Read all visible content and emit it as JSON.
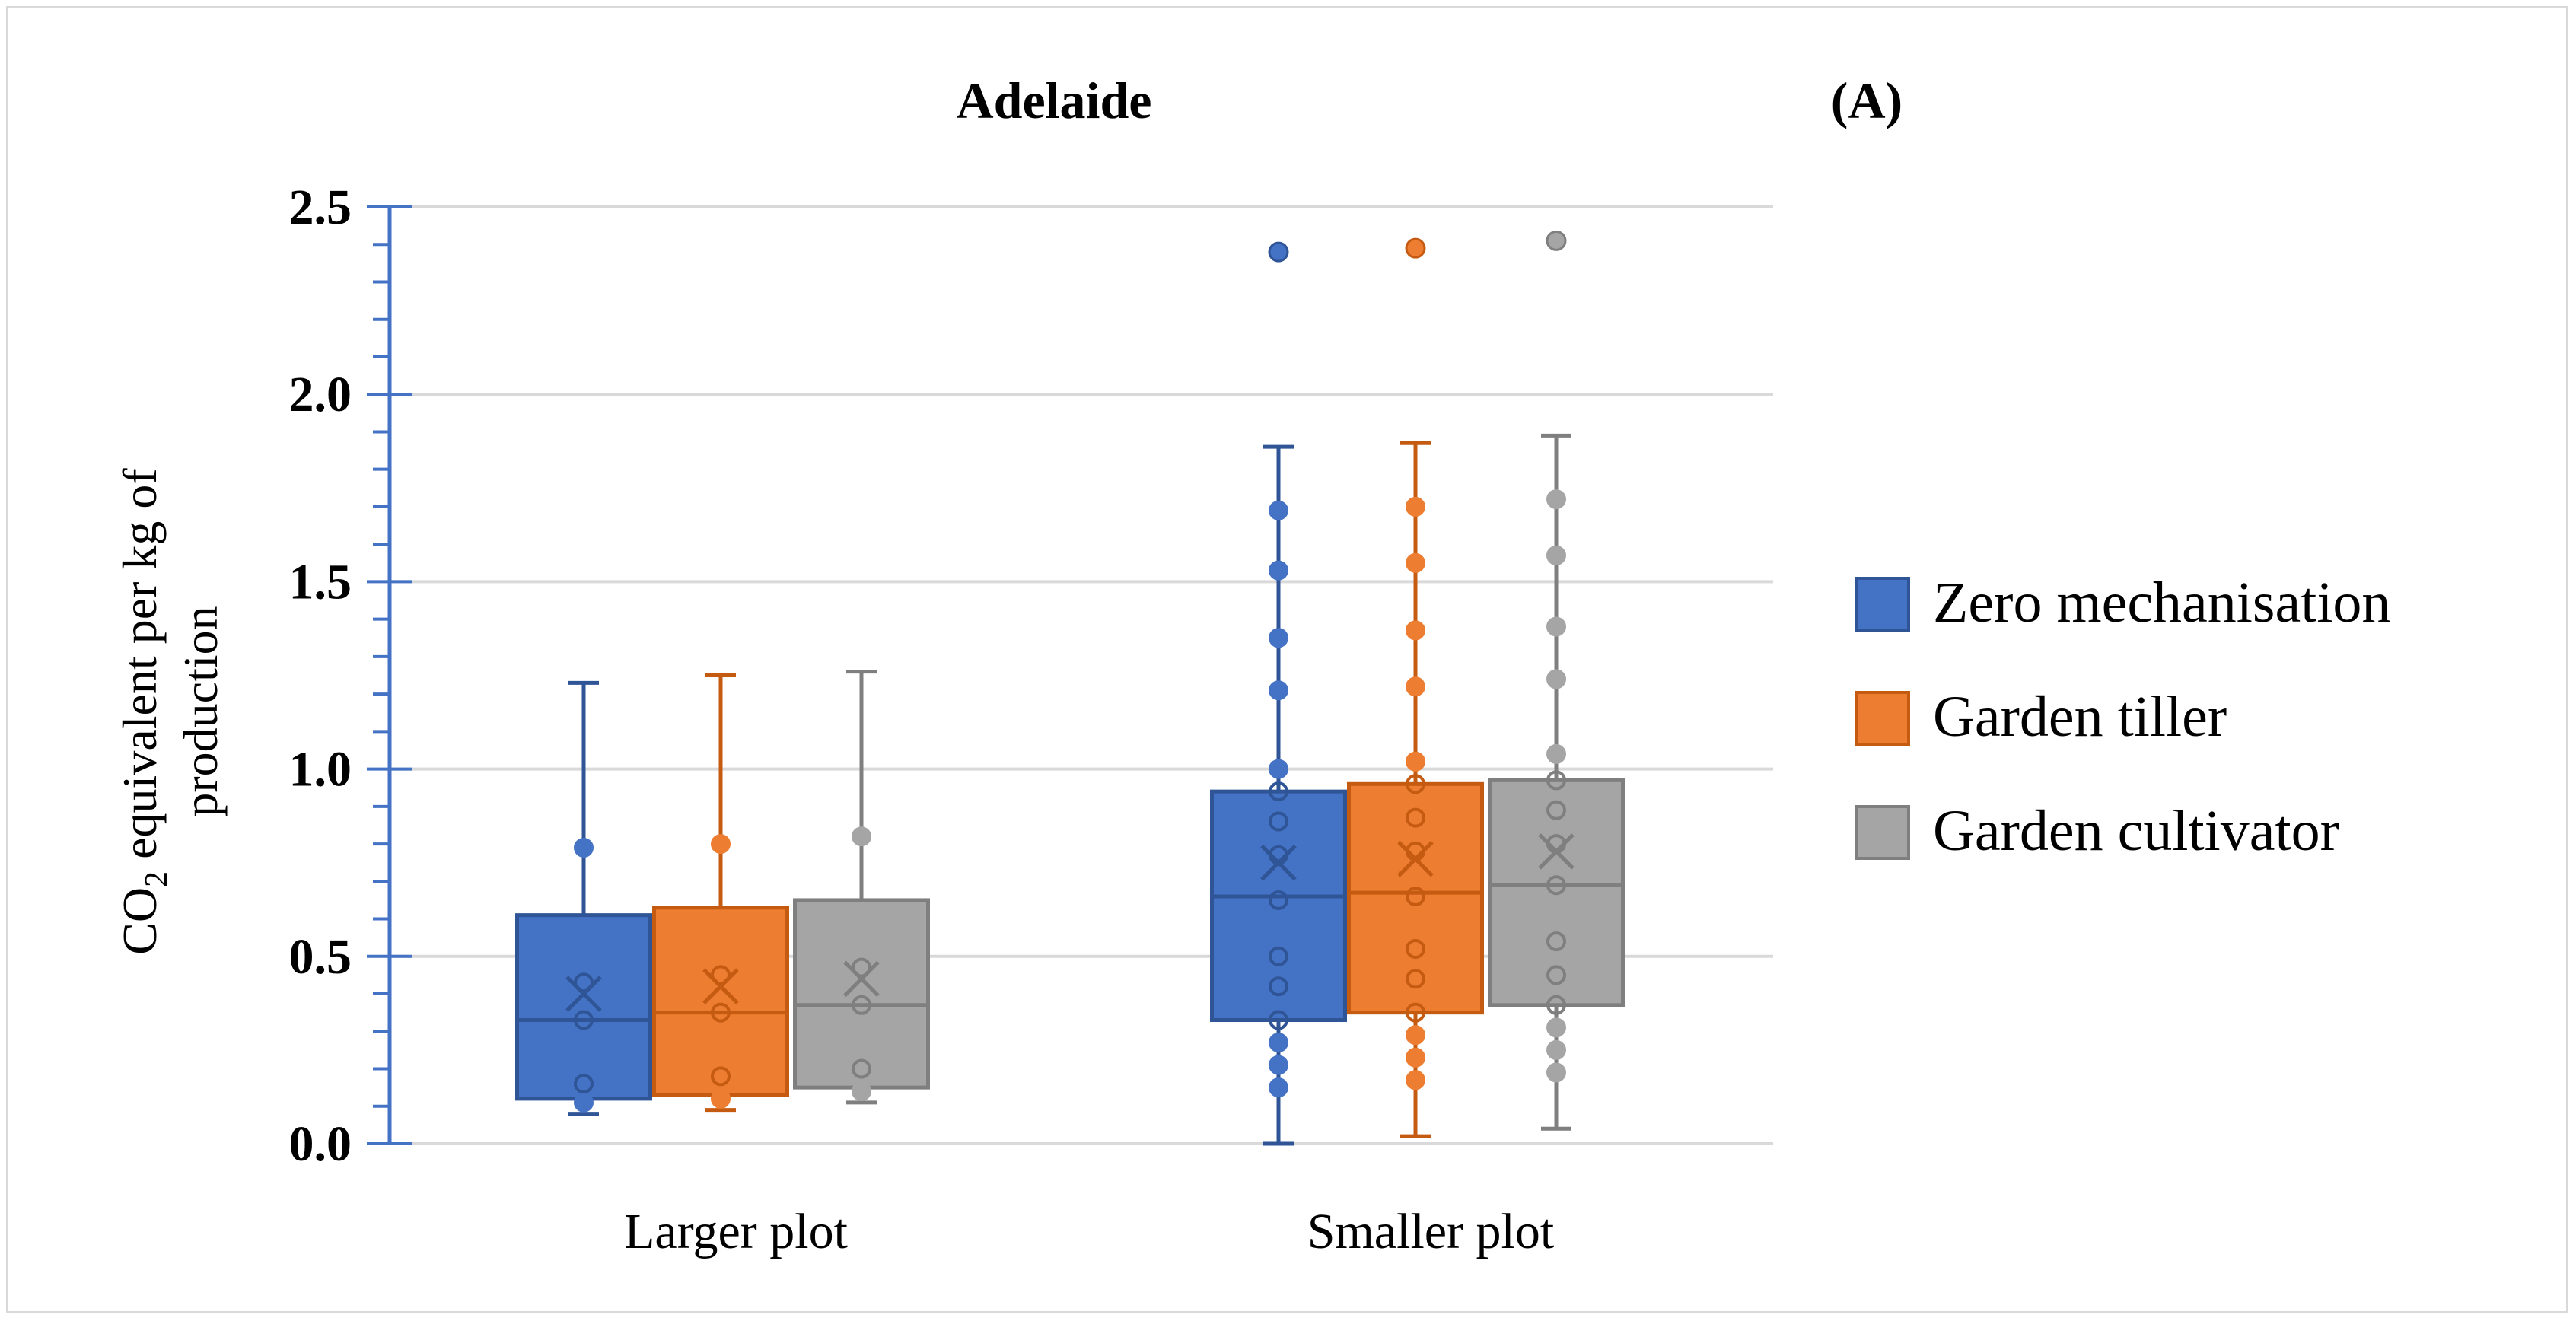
{
  "chart_data": {
    "type": "box",
    "title": "Adelaide",
    "panel_label": "(A)",
    "ylabel_parts": [
      "CO",
      "2",
      " equivalent per kg of",
      "production"
    ],
    "ylim": [
      0,
      2.5
    ],
    "yticks": [
      {
        "value": 0.0,
        "label": "0.0"
      },
      {
        "value": 0.5,
        "label": "0.5"
      },
      {
        "value": 1.0,
        "label": "1.0"
      },
      {
        "value": 1.5,
        "label": "1.5"
      },
      {
        "value": 2.0,
        "label": "2.0"
      },
      {
        "value": 2.5,
        "label": "2.5"
      }
    ],
    "grid": true,
    "legend_position": "right",
    "categories": [
      "Larger plot",
      "Smaller plot"
    ],
    "series": [
      {
        "name": "Zero mechanisation",
        "color": "#4472c4",
        "stroke": "#2f5597",
        "boxes": [
          {
            "min": 0.08,
            "q1": 0.12,
            "median": 0.33,
            "q3": 0.61,
            "max": 1.23,
            "mean": 0.4,
            "points": [
              0.79,
              0.43,
              0.33,
              0.16,
              0.11
            ],
            "outliers": []
          },
          {
            "min": 0.0,
            "q1": 0.33,
            "median": 0.66,
            "q3": 0.94,
            "max": 1.86,
            "mean": 0.75,
            "points": [
              1.69,
              1.53,
              1.35,
              1.21,
              1.0,
              0.94,
              0.86,
              0.77,
              0.65,
              0.5,
              0.42,
              0.33,
              0.27,
              0.21,
              0.15
            ],
            "outliers": [
              2.38
            ]
          }
        ]
      },
      {
        "name": "Garden tiller",
        "color": "#ed7d31",
        "stroke": "#c55a11",
        "boxes": [
          {
            "min": 0.09,
            "q1": 0.13,
            "median": 0.35,
            "q3": 0.63,
            "max": 1.25,
            "mean": 0.42,
            "points": [
              0.8,
              0.45,
              0.35,
              0.18,
              0.12
            ],
            "outliers": []
          },
          {
            "min": 0.02,
            "q1": 0.35,
            "median": 0.67,
            "q3": 0.96,
            "max": 1.87,
            "mean": 0.76,
            "points": [
              1.7,
              1.55,
              1.37,
              1.22,
              1.02,
              0.96,
              0.87,
              0.78,
              0.66,
              0.52,
              0.44,
              0.35,
              0.29,
              0.23,
              0.17
            ],
            "outliers": [
              2.39
            ]
          }
        ]
      },
      {
        "name": "Garden cultivator",
        "color": "#a5a5a5",
        "stroke": "#7f7f7f",
        "boxes": [
          {
            "min": 0.11,
            "q1": 0.15,
            "median": 0.37,
            "q3": 0.65,
            "max": 1.26,
            "mean": 0.44,
            "points": [
              0.82,
              0.47,
              0.37,
              0.2,
              0.14
            ],
            "outliers": []
          },
          {
            "min": 0.04,
            "q1": 0.37,
            "median": 0.69,
            "q3": 0.97,
            "max": 1.89,
            "mean": 0.78,
            "points": [
              1.72,
              1.57,
              1.38,
              1.24,
              1.04,
              0.97,
              0.89,
              0.8,
              0.69,
              0.54,
              0.45,
              0.37,
              0.31,
              0.25,
              0.19
            ],
            "outliers": [
              2.41
            ]
          }
        ]
      }
    ]
  }
}
